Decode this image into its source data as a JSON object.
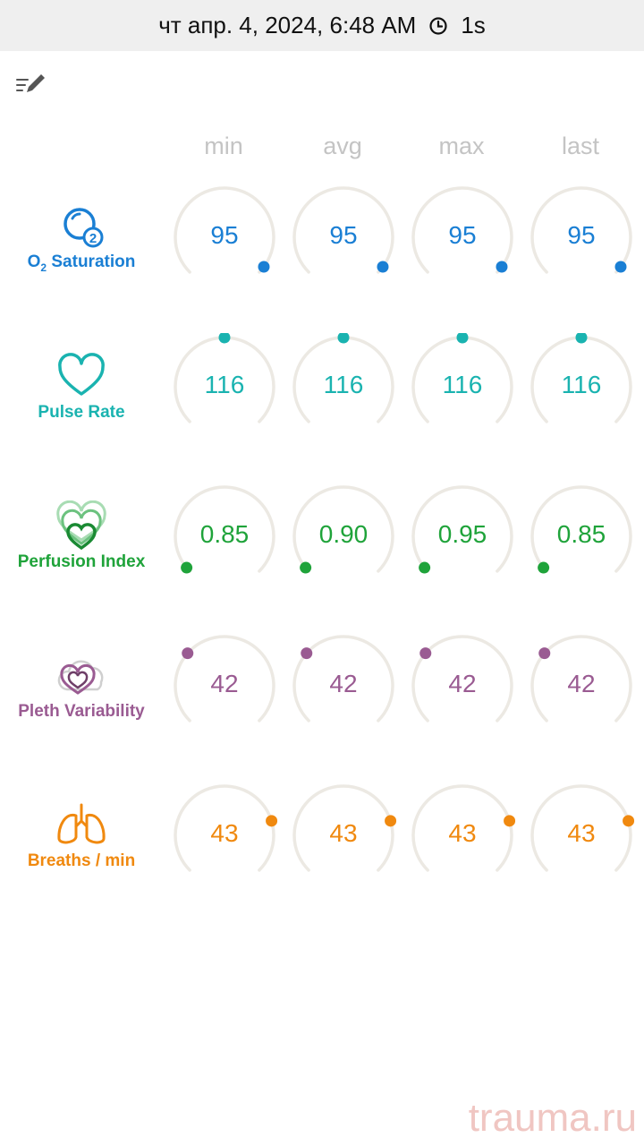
{
  "status_bar": {
    "datetime": "чт апр. 4, 2024, 6:48 AM",
    "duration": "1s"
  },
  "columns": [
    "min",
    "avg",
    "max",
    "last"
  ],
  "metrics": [
    {
      "id": "o2",
      "label_main": "O",
      "label_sub": "2",
      "label_rest": " Saturation",
      "color": "#1a7fd4",
      "icon": "o2-icon",
      "values": [
        "95",
        "95",
        "95",
        "95"
      ],
      "gauge_fraction": 0.97
    },
    {
      "id": "pulse",
      "label": "Pulse Rate",
      "color": "#1ab3b0",
      "icon": "heart-icon",
      "values": [
        "116",
        "116",
        "116",
        "116"
      ],
      "gauge_fraction": 0.5
    },
    {
      "id": "perfusion",
      "label": "Perfusion Index",
      "color": "#1fa33a",
      "icon": "perfusion-heart-icon",
      "values": [
        "0.85",
        "0.90",
        "0.95",
        "0.85"
      ],
      "gauge_fraction": 0.02
    },
    {
      "id": "pleth",
      "label": "Pleth Variability",
      "color": "#9a5b92",
      "icon": "pleth-heart-cloud-icon",
      "values": [
        "42",
        "42",
        "42",
        "42"
      ],
      "gauge_fraction": 0.32
    },
    {
      "id": "breaths",
      "label": "Breaths / min",
      "color": "#f0890f",
      "icon": "lungs-icon",
      "values": [
        "43",
        "43",
        "43",
        "43"
      ],
      "gauge_fraction": 0.77
    }
  ],
  "watermark": "trauma.ru"
}
